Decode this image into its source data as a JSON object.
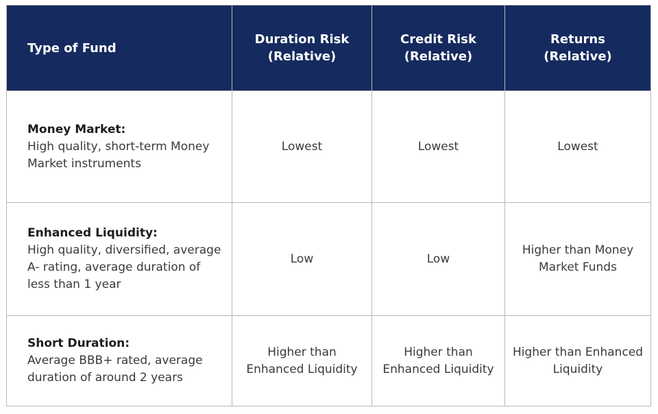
{
  "table": {
    "headers": [
      {
        "line1": "Type of Fund",
        "line2": ""
      },
      {
        "line1": "Duration Risk",
        "line2": "(Relative)"
      },
      {
        "line1": "Credit Risk",
        "line2": "(Relative)"
      },
      {
        "line1": "Returns",
        "line2": "(Relative)"
      }
    ],
    "rows": [
      {
        "name": "Money Market:",
        "desc": "High quality, short-term Money Market instruments",
        "duration_risk": "Lowest",
        "credit_risk": "Lowest",
        "returns": "Lowest"
      },
      {
        "name": "Enhanced Liquidity:",
        "desc": "High quality, diversified, average A- rating, average duration of less than 1 year",
        "duration_risk": "Low",
        "credit_risk": "Low",
        "returns": "Higher than Money Market Funds"
      },
      {
        "name": "Short Duration:",
        "desc": "Average BBB+ rated, average duration of around 2 years",
        "duration_risk": "Higher than Enhanced Liquidity",
        "credit_risk": "Higher than Enhanced Liquidity",
        "returns": "Higher than Enhanced Liquidity"
      }
    ]
  },
  "colors": {
    "header_background": "#152a5e",
    "header_text": "#ffffff",
    "body_text": "#3a3a3a",
    "border": "#b8b8b8"
  }
}
